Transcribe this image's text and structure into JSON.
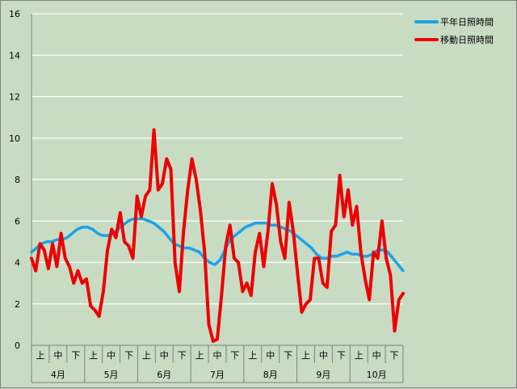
{
  "chart_data": {
    "type": "line",
    "title": "",
    "xlabel": "",
    "ylabel": "",
    "ylim": [
      0,
      16
    ],
    "yticks": [
      "0",
      "2",
      "4",
      "6",
      "8",
      "10",
      "12",
      "14",
      "16"
    ],
    "grid": true,
    "legend_position": "top-right",
    "subdivision_labels": [
      "上",
      "中",
      "下"
    ],
    "months": [
      "4月",
      "5月",
      "6月",
      "7月",
      "8月",
      "9月",
      "10月"
    ],
    "series": [
      {
        "name": "平年日照時間",
        "color": "#1aa3e8",
        "values": [
          4.5,
          4.7,
          4.9,
          5.0,
          5.0,
          5.1,
          5.1,
          5.2,
          5.4,
          5.6,
          5.7,
          5.7,
          5.6,
          5.4,
          5.3,
          5.3,
          5.4,
          5.6,
          5.8,
          6.0,
          6.1,
          6.1,
          6.1,
          6.0,
          5.9,
          5.7,
          5.5,
          5.2,
          4.9,
          4.8,
          4.7,
          4.7,
          4.6,
          4.5,
          4.2,
          4.0,
          3.9,
          4.1,
          4.6,
          5.1,
          5.3,
          5.5,
          5.7,
          5.8,
          5.9,
          5.9,
          5.9,
          5.8,
          5.8,
          5.7,
          5.6,
          5.5,
          5.3,
          5.1,
          4.9,
          4.7,
          4.4,
          4.2,
          4.2,
          4.3,
          4.3,
          4.4,
          4.5,
          4.4,
          4.4,
          4.3,
          4.3,
          4.4,
          4.6,
          4.6,
          4.5,
          4.2,
          3.9,
          3.6
        ]
      },
      {
        "name": "移動日照時間",
        "color": "#ee0000",
        "values": [
          4.2,
          3.6,
          4.9,
          4.6,
          3.7,
          4.9,
          3.8,
          5.4,
          4.2,
          3.8,
          3.0,
          3.6,
          3.0,
          3.2,
          1.9,
          1.7,
          1.4,
          2.6,
          4.6,
          5.6,
          5.2,
          6.4,
          5.0,
          4.8,
          4.2,
          7.2,
          6.2,
          7.2,
          7.5,
          10.4,
          7.5,
          7.8,
          9.0,
          8.5,
          4.0,
          2.6,
          5.5,
          7.5,
          9.0,
          8.0,
          6.5,
          4.5,
          1.0,
          0.2,
          0.3,
          2.4,
          4.8,
          5.8,
          4.2,
          4.0,
          2.6,
          3.0,
          2.4,
          4.5,
          5.4,
          3.8,
          5.5,
          7.8,
          6.8,
          5.0,
          4.2,
          6.9,
          5.5,
          3.5,
          1.6,
          2.0,
          2.2,
          4.2,
          4.2,
          3.0,
          2.8,
          5.5,
          5.8,
          8.2,
          6.2,
          7.5,
          5.8,
          6.7,
          4.5,
          3.2,
          2.2,
          4.5,
          4.2,
          6.0,
          4.2,
          3.4,
          0.7,
          2.2,
          2.5
        ]
      }
    ]
  }
}
